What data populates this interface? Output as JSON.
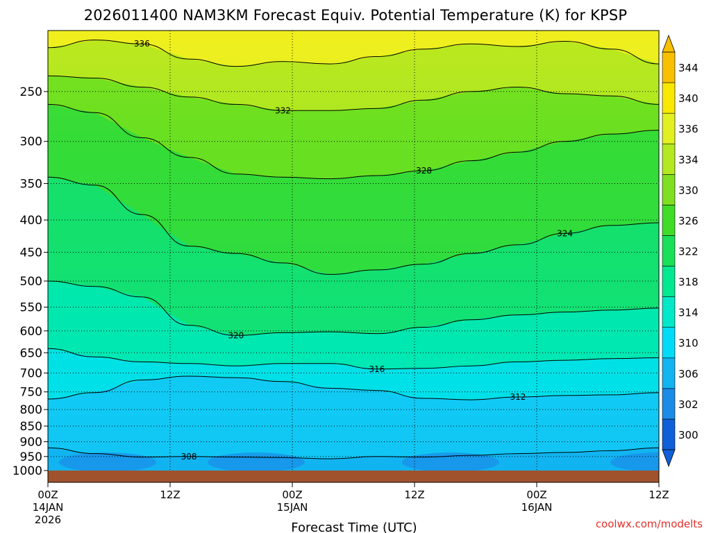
{
  "chart_data": {
    "type": "heatmap",
    "title": "2026011400 NAM3KM Forecast Equiv. Potential Temperature (K) for KPSP",
    "xlabel": "Forecast Time (UTC)",
    "ylabel": "",
    "credit": "coolwx.com/modelts",
    "x_range_hours": [
      0,
      60
    ],
    "y_range_hpa": [
      1000,
      200
    ],
    "x_ticks": [
      {
        "hour": 0,
        "label": "00Z",
        "sub1": "14JAN",
        "sub2": "2026"
      },
      {
        "hour": 12,
        "label": "12Z",
        "sub1": "",
        "sub2": ""
      },
      {
        "hour": 24,
        "label": "00Z",
        "sub1": "15JAN",
        "sub2": ""
      },
      {
        "hour": 36,
        "label": "12Z",
        "sub1": "",
        "sub2": ""
      },
      {
        "hour": 48,
        "label": "00Z",
        "sub1": "16JAN",
        "sub2": ""
      },
      {
        "hour": 60,
        "label": "12Z",
        "sub1": "",
        "sub2": ""
      }
    ],
    "y_ticks": [
      250,
      300,
      350,
      400,
      450,
      500,
      550,
      600,
      650,
      700,
      750,
      800,
      850,
      900,
      950,
      1000
    ],
    "colorbar": {
      "levels": [
        300,
        302,
        306,
        310,
        314,
        318,
        322,
        326,
        330,
        334,
        336,
        340,
        344
      ],
      "labels": [
        "300",
        "302",
        "306",
        "310",
        "314",
        "318",
        "322",
        "326",
        "330",
        "334",
        "336",
        "340",
        "344"
      ],
      "colors": [
        "#0f5fd8",
        "#1a8ce8",
        "#12b4f0",
        "#00dcf8",
        "#00e8c8",
        "#00e890",
        "#18e058",
        "#40dc28",
        "#7ee020",
        "#b4e820",
        "#e0f020",
        "#f8e800",
        "#f8c000"
      ]
    },
    "series": [
      {
        "name": "336",
        "values": [
          213,
          207,
          210,
          222,
          228,
          224,
          226,
          220,
          214,
          210,
          212,
          208,
          214,
          226
        ]
      },
      {
        "name": "332",
        "values": [
          236,
          238,
          246,
          255,
          262,
          268,
          268,
          266,
          258,
          250,
          246,
          252,
          254,
          262
        ]
      },
      {
        "name": "328",
        "values": [
          262,
          270,
          296,
          318,
          338,
          342,
          344,
          340,
          334,
          322,
          312,
          300,
          292,
          288
        ]
      },
      {
        "name": "324",
        "values": [
          342,
          352,
          392,
          440,
          452,
          468,
          488,
          480,
          470,
          452,
          438,
          420,
          408,
          404
        ]
      },
      {
        "name": "320",
        "values": [
          500,
          510,
          530,
          588,
          610,
          604,
          602,
          606,
          592,
          576,
          566,
          560,
          556,
          552
        ]
      },
      {
        "name": "316",
        "values": [
          640,
          660,
          672,
          676,
          682,
          676,
          676,
          690,
          688,
          682,
          672,
          668,
          664,
          662
        ]
      },
      {
        "name": "312",
        "values": [
          770,
          752,
          718,
          708,
          712,
          722,
          740,
          746,
          768,
          772,
          764,
          760,
          758,
          752
        ]
      },
      {
        "name": "308",
        "values": [
          920,
          940,
          952,
          950,
          952,
          954,
          958,
          950,
          952,
          946,
          940,
          936,
          930,
          920
        ]
      }
    ]
  }
}
